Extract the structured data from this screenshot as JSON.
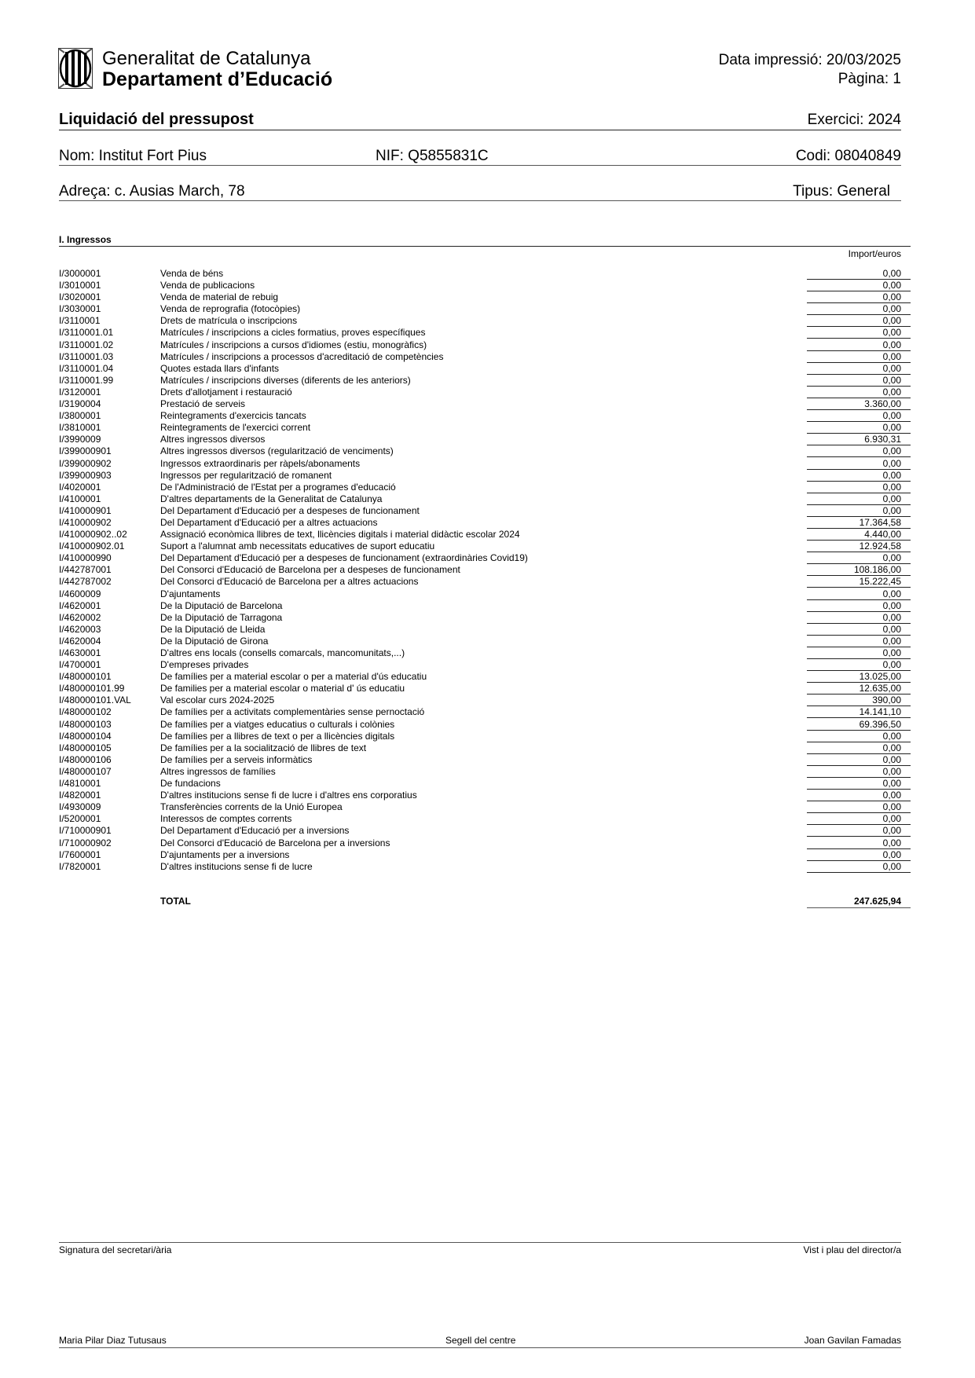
{
  "header": {
    "org_line1": "Generalitat de Catalunya",
    "org_line2": "Departament d’Educació",
    "print_date": "Data impressió: 20/03/2025",
    "page": "Pàgina: 1",
    "logo_icon": "generalitat-logo"
  },
  "report": {
    "title": "Liquidació del pressupost",
    "exercise": "Exercici: 2024",
    "name": "Nom: Institut Fort Pius",
    "nif": "NIF: Q5855831C",
    "code": "Codi: 08040849",
    "address": "Adreça: c. Ausias March, 78",
    "type": "Tipus: General"
  },
  "section": {
    "title": "I. Ingressos",
    "amount_header": "Import/euros",
    "rows": [
      {
        "code": "I/3000001",
        "desc": "Venda de béns",
        "value": "0,00"
      },
      {
        "code": "I/3010001",
        "desc": "Venda de publicacions",
        "value": "0,00"
      },
      {
        "code": "I/3020001",
        "desc": "Venda de material de rebuig",
        "value": "0,00"
      },
      {
        "code": "I/3030001",
        "desc": "Venda de reprografia (fotocòpies)",
        "value": "0,00"
      },
      {
        "code": "I/3110001",
        "desc": "Drets de matrícula o inscripcions",
        "value": "0,00"
      },
      {
        "code": "I/3110001.01",
        "desc": "Matrícules / inscripcions a cicles formatius, proves específiques",
        "value": "0,00"
      },
      {
        "code": "I/3110001.02",
        "desc": "Matrícules / inscripcions a cursos d'idiomes (estiu, monogràfics)",
        "value": "0,00"
      },
      {
        "code": "I/3110001.03",
        "desc": "Matrícules / inscripcions a processos d'acreditació de competències",
        "value": "0,00"
      },
      {
        "code": "I/3110001.04",
        "desc": "Quotes estada llars d'infants",
        "value": "0,00"
      },
      {
        "code": "I/3110001.99",
        "desc": "Matrícules / inscripcions diverses (diferents de les anteriors)",
        "value": "0,00"
      },
      {
        "code": "I/3120001",
        "desc": "Drets d'allotjament i restauració",
        "value": "0,00"
      },
      {
        "code": "I/3190004",
        "desc": "Prestació de serveis",
        "value": "3.360,00"
      },
      {
        "code": "I/3800001",
        "desc": "Reintegraments d'exercicis tancats",
        "value": "0,00"
      },
      {
        "code": "I/3810001",
        "desc": "Reintegraments de l'exercici corrent",
        "value": "0,00"
      },
      {
        "code": "I/3990009",
        "desc": "Altres ingressos diversos",
        "value": "6.930,31"
      },
      {
        "code": "I/399000901",
        "desc": "Altres ingressos diversos (regularització de venciments)",
        "value": "0,00"
      },
      {
        "code": "I/399000902",
        "desc": "Ingressos extraordinaris per ràpels/abonaments",
        "value": "0,00"
      },
      {
        "code": "I/399000903",
        "desc": "Ingressos per regularització de romanent",
        "value": "0,00"
      },
      {
        "code": "I/4020001",
        "desc": "De l'Administració de l'Estat per a programes d'educació",
        "value": "0,00"
      },
      {
        "code": "I/4100001",
        "desc": "D'altres departaments de la Generalitat de Catalunya",
        "value": "0,00"
      },
      {
        "code": "I/410000901",
        "desc": "Del Departament d'Educació per a despeses de funcionament",
        "value": "0,00"
      },
      {
        "code": "I/410000902",
        "desc": "Del Departament d'Educació per a altres actuacions",
        "value": "17.364,58"
      },
      {
        "code": "I/410000902..02",
        "desc": "Assignació econòmica llibres de text, llicències digitals i material didàctic escolar 2024",
        "value": "4.440,00"
      },
      {
        "code": "I/410000902.01",
        "desc": "Suport a l'alumnat amb necessitats educatives de suport educatiu",
        "value": "12.924,58"
      },
      {
        "code": "I/410000990",
        "desc": "Del Departament d'Educació per a despeses de funcionament (extraordinàries Covid19)",
        "value": "0,00"
      },
      {
        "code": "I/442787001",
        "desc": "Del Consorci d'Educació de Barcelona per a despeses de funcionament",
        "value": "108.186,00"
      },
      {
        "code": "I/442787002",
        "desc": "Del Consorci d'Educació de Barcelona per a altres actuacions",
        "value": "15.222,45"
      },
      {
        "code": "I/4600009",
        "desc": "D'ajuntaments",
        "value": "0,00"
      },
      {
        "code": "I/4620001",
        "desc": "De la Diputació de Barcelona",
        "value": "0,00"
      },
      {
        "code": "I/4620002",
        "desc": "De la Diputació de Tarragona",
        "value": "0,00"
      },
      {
        "code": "I/4620003",
        "desc": "De la Diputació de Lleida",
        "value": "0,00"
      },
      {
        "code": "I/4620004",
        "desc": "De la Diputació de Girona",
        "value": "0,00"
      },
      {
        "code": "I/4630001",
        "desc": "D'altres ens locals (consells comarcals, mancomunitats,...)",
        "value": "0,00"
      },
      {
        "code": "I/4700001",
        "desc": "D'empreses privades",
        "value": "0,00"
      },
      {
        "code": "I/480000101",
        "desc": "De famílies per a material escolar o per a material d'ús educatiu",
        "value": "13.025,00"
      },
      {
        "code": "I/480000101.99",
        "desc": "De families per a material escolar o material d' ús educatiu",
        "value": "12.635,00"
      },
      {
        "code": "I/480000101.VAL",
        "desc": "Val escolar curs 2024-2025",
        "value": "390,00"
      },
      {
        "code": "I/480000102",
        "desc": "De famílies per a activitats complementàries sense pernoctació",
        "value": "14.141,10"
      },
      {
        "code": "I/480000103",
        "desc": "De famílies per a viatges educatius o culturals i colònies",
        "value": "69.396,50"
      },
      {
        "code": "I/480000104",
        "desc": "De famílies per a llibres de text o per a llicències digitals",
        "value": "0,00"
      },
      {
        "code": "I/480000105",
        "desc": "De famílies per a la socialització de llibres de text",
        "value": "0,00"
      },
      {
        "code": "I/480000106",
        "desc": "De famílies per a serveis informàtics",
        "value": "0,00"
      },
      {
        "code": "I/480000107",
        "desc": "Altres ingressos de famílies",
        "value": "0,00"
      },
      {
        "code": "I/4810001",
        "desc": "De fundacions",
        "value": "0,00"
      },
      {
        "code": "I/4820001",
        "desc": "D'altres institucions sense fi de lucre i d'altres ens corporatius",
        "value": "0,00"
      },
      {
        "code": "I/4930009",
        "desc": "Transferències corrents de la Unió Europea",
        "value": "0,00"
      },
      {
        "code": "I/5200001",
        "desc": "Interessos de comptes corrents",
        "value": "0,00"
      },
      {
        "code": "I/710000901",
        "desc": "Del Departament d'Educació per a inversions",
        "value": "0,00"
      },
      {
        "code": "I/710000902",
        "desc": "Del Consorci d'Educació de Barcelona per a inversions",
        "value": "0,00"
      },
      {
        "code": "I/7600001",
        "desc": "D'ajuntaments per a inversions",
        "value": "0,00"
      },
      {
        "code": "I/7820001",
        "desc": "D'altres institucions sense fi de lucre",
        "value": "0,00"
      }
    ],
    "total_label": "TOTAL",
    "total_value": "247.625,94"
  },
  "footer": {
    "secretary_label": "Signatura del secretari/ària",
    "director_label": "Vist i plau del director/a",
    "secretary_name": "Maria Pilar Diaz Tutusaus",
    "stamp_label": "Segell del centre",
    "director_name": "Joan Gavilan Famadas"
  }
}
